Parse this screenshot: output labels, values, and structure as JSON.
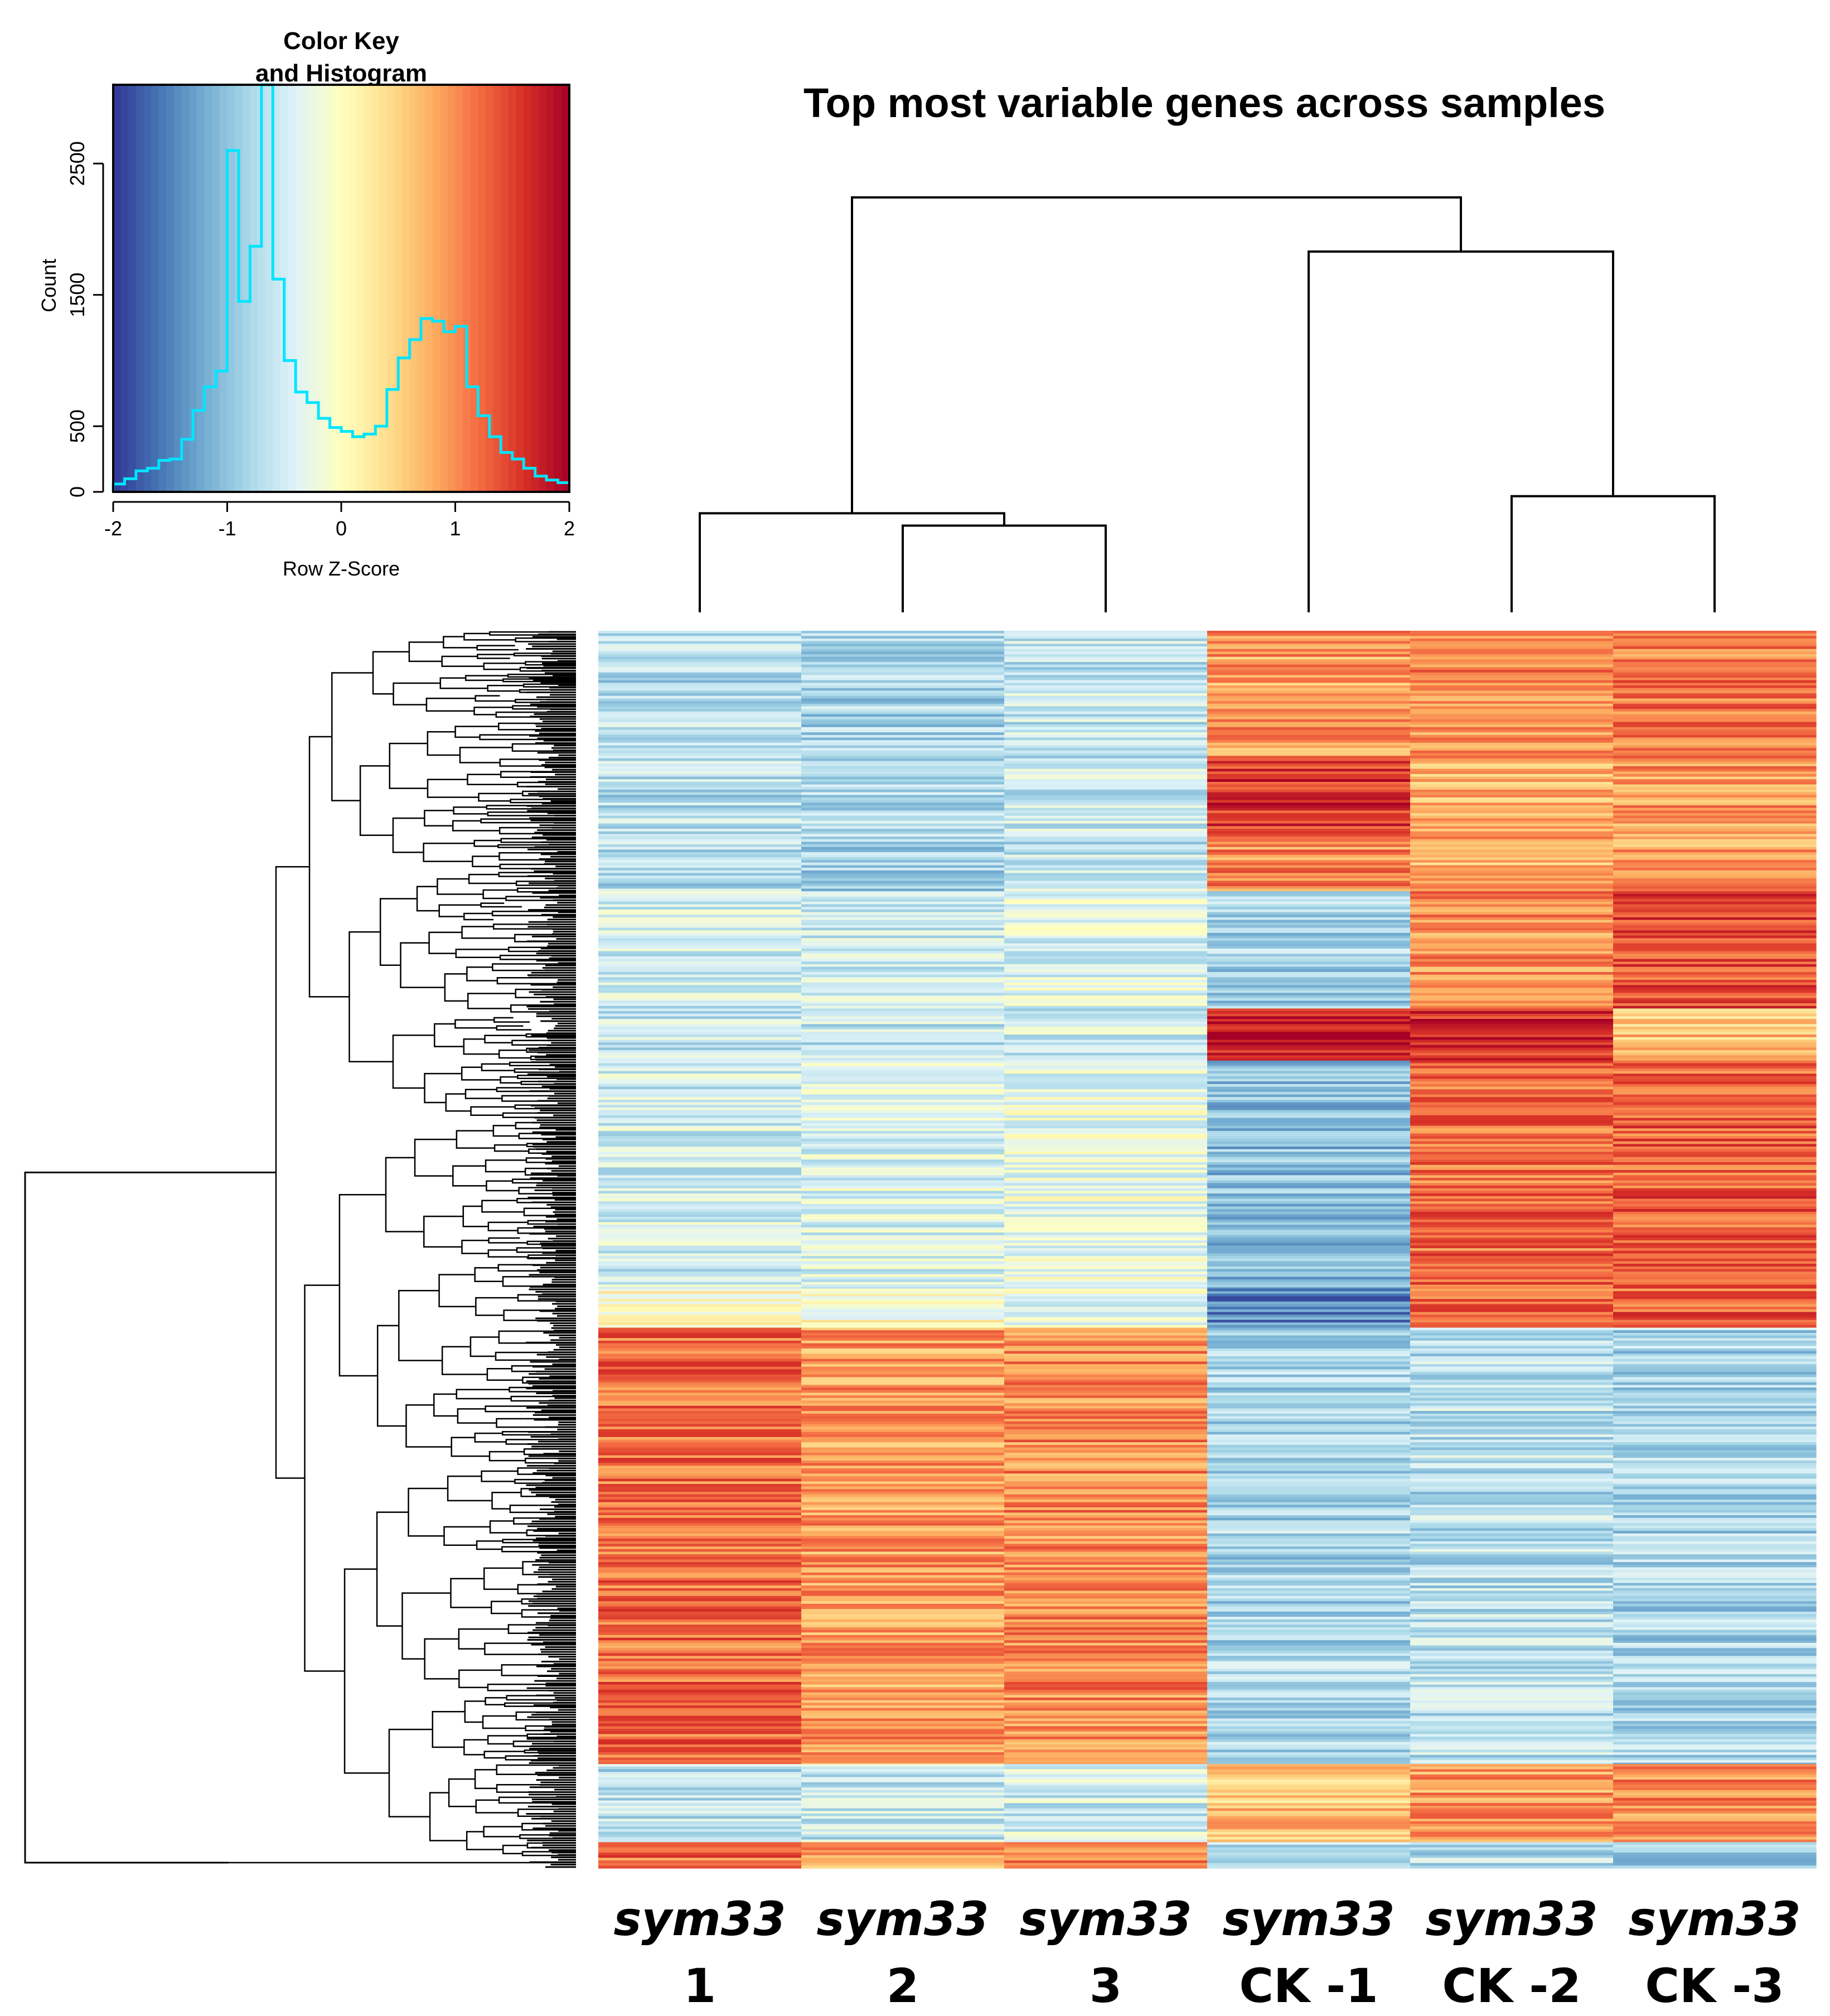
{
  "chart_data": {
    "type": "heatmap",
    "title": "Top most variable genes across samples",
    "samples": [
      {
        "name": "sym33",
        "id": "1"
      },
      {
        "name": "sym33",
        "id": "2"
      },
      {
        "name": "sym33",
        "id": "3"
      },
      {
        "name": "sym33",
        "id": "CK -1"
      },
      {
        "name": "sym33",
        "id": "CK -2"
      },
      {
        "name": "sym33",
        "id": "CK -3"
      }
    ],
    "row_blocks": [
      {
        "rows": 200,
        "z": [
          -0.7,
          -0.8,
          -0.6,
          0.9,
          1.0,
          1.1
        ]
      },
      {
        "rows": 120,
        "z": [
          -0.7,
          -0.75,
          -0.6,
          1.6,
          0.8,
          0.9
        ]
      },
      {
        "rows": 80,
        "z": [
          -0.7,
          -0.8,
          -0.6,
          1.0,
          0.7,
          0.9
        ]
      },
      {
        "rows": 180,
        "z": [
          -0.5,
          -0.5,
          -0.4,
          -0.8,
          1.0,
          1.4
        ]
      },
      {
        "rows": 80,
        "z": [
          -0.6,
          -0.6,
          -0.5,
          1.8,
          1.7,
          0.6
        ]
      },
      {
        "rows": 350,
        "z": [
          -0.5,
          -0.4,
          -0.3,
          -1.0,
          1.2,
          1.3
        ]
      },
      {
        "rows": 60,
        "z": [
          0.0,
          0.0,
          -0.3,
          -1.5,
          1.2,
          1.3
        ]
      },
      {
        "rows": 670,
        "z": [
          1.2,
          0.9,
          1.0,
          -0.8,
          -0.7,
          -0.8
        ]
      },
      {
        "rows": 120,
        "z": [
          -0.7,
          -0.6,
          -0.5,
          0.6,
          0.9,
          1.0
        ]
      },
      {
        "rows": 40,
        "z": [
          1.2,
          0.9,
          1.0,
          -0.8,
          -0.7,
          -0.8
        ]
      }
    ],
    "col_dendrogram": {
      "merges": [
        {
          "left": 1,
          "right": 2,
          "height": 0.56
        },
        {
          "left": 4,
          "right": 5,
          "height": 0.75
        },
        {
          "left": 0,
          "right": "m0",
          "height": 0.64
        },
        {
          "left": 3,
          "right": "m1",
          "height": 2.33
        },
        {
          "left": "m2",
          "right": "m3",
          "height": 2.68
        }
      ]
    },
    "color_key": {
      "title": "Color Key",
      "subtitle": "and Histogram",
      "xlabel": "Row Z-Score",
      "ylabel": "Count",
      "xlim": [
        -2,
        2
      ],
      "ylim": [
        0,
        3100
      ],
      "xticks": [
        "-2",
        "-1",
        "0",
        "1",
        "2"
      ],
      "yticks": [
        "0",
        "500",
        "1500",
        "2500"
      ],
      "colors": [
        "#313695",
        "#4575b4",
        "#74add1",
        "#abd9e9",
        "#e0f3f8",
        "#ffffbf",
        "#fee090",
        "#fdae61",
        "#f46d43",
        "#d73027",
        "#a50026"
      ],
      "histogram": {
        "bin_edges": [
          -2.0,
          -1.9,
          -1.8,
          -1.7,
          -1.6,
          -1.5,
          -1.4,
          -1.3,
          -1.2,
          -1.1,
          -1.0,
          -0.9,
          -0.8,
          -0.7,
          -0.6,
          -0.5,
          -0.4,
          -0.3,
          -0.2,
          -0.1,
          0.0,
          0.1,
          0.2,
          0.3,
          0.4,
          0.5,
          0.6,
          0.7,
          0.8,
          0.9,
          1.0,
          1.1,
          1.2,
          1.3,
          1.4,
          1.5,
          1.6,
          1.7,
          1.8,
          1.9,
          2.0
        ],
        "counts": [
          60,
          100,
          160,
          180,
          240,
          250,
          400,
          620,
          800,
          920,
          2600,
          1450,
          1870,
          3100,
          1620,
          1000,
          760,
          680,
          560,
          490,
          460,
          420,
          440,
          500,
          780,
          1020,
          1160,
          1320,
          1300,
          1220,
          1260,
          800,
          580,
          420,
          300,
          250,
          180,
          120,
          90,
          70
        ]
      }
    }
  }
}
